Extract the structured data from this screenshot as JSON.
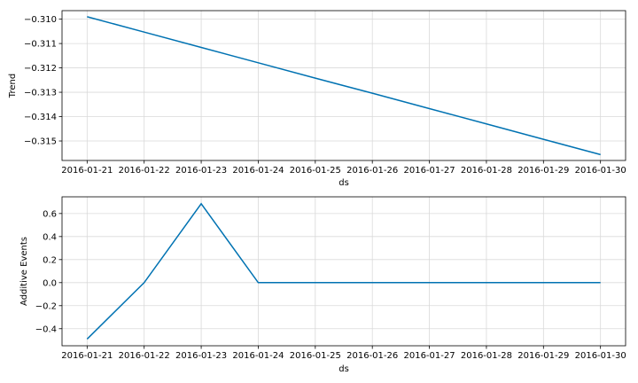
{
  "chart_data": [
    {
      "type": "line",
      "xlabel": "ds",
      "ylabel": "Trend",
      "x": [
        "2016-01-21",
        "2016-01-22",
        "2016-01-23",
        "2016-01-24",
        "2016-01-25",
        "2016-01-26",
        "2016-01-27",
        "2016-01-28",
        "2016-01-29",
        "2016-01-30"
      ],
      "x_ticks": [
        "2016-01-21",
        "2016-01-22",
        "2016-01-23",
        "2016-01-24",
        "2016-01-25",
        "2016-01-26",
        "2016-01-27",
        "2016-01-28",
        "2016-01-29",
        "2016-01-30"
      ],
      "series": [
        {
          "values": [
            -0.3099,
            -0.31053,
            -0.31116,
            -0.31179,
            -0.31242,
            -0.31304,
            -0.31367,
            -0.3143,
            -0.31493,
            -0.31556
          ],
          "color": "#0072B2"
        }
      ],
      "y_ticks": [
        -0.31,
        -0.311,
        -0.312,
        -0.313,
        -0.314,
        -0.315
      ],
      "y_tick_labels": [
        "−0.310",
        "−0.311",
        "−0.312",
        "−0.313",
        "−0.314",
        "−0.315"
      ],
      "ylim": [
        -0.3158,
        -0.30965
      ],
      "grid": true
    },
    {
      "type": "line",
      "xlabel": "ds",
      "ylabel": "Additive Events",
      "x": [
        "2016-01-21",
        "2016-01-22",
        "2016-01-23",
        "2016-01-24",
        "2016-01-25",
        "2016-01-26",
        "2016-01-27",
        "2016-01-28",
        "2016-01-29",
        "2016-01-30"
      ],
      "x_ticks": [
        "2016-01-21",
        "2016-01-22",
        "2016-01-23",
        "2016-01-24",
        "2016-01-25",
        "2016-01-26",
        "2016-01-27",
        "2016-01-28",
        "2016-01-29",
        "2016-01-30"
      ],
      "series": [
        {
          "values": [
            -0.49,
            0.0,
            0.685,
            0.0,
            0.0,
            0.0,
            0.0,
            0.0,
            0.0,
            0.0
          ],
          "color": "#0072B2"
        }
      ],
      "y_ticks": [
        -0.4,
        -0.2,
        0.0,
        0.2,
        0.4,
        0.6
      ],
      "y_tick_labels": [
        "−0.4",
        "−0.2",
        "0.0",
        "0.2",
        "0.4",
        "0.6"
      ],
      "ylim": [
        -0.548,
        0.745
      ],
      "grid": true
    }
  ]
}
